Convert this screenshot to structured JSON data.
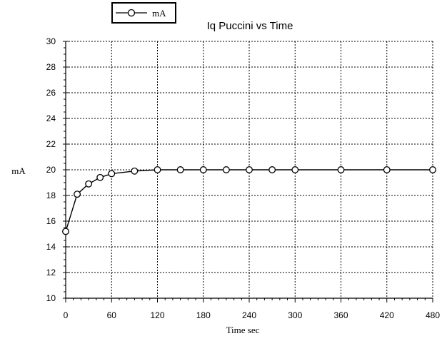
{
  "chart_data": {
    "type": "line",
    "title": "Iq  Puccini  vs  Time",
    "xlabel": "Time  sec",
    "ylabel": "mA",
    "xlim": [
      0,
      480
    ],
    "ylim": [
      10,
      30
    ],
    "x_ticks": [
      0,
      60,
      120,
      180,
      240,
      300,
      360,
      420,
      480
    ],
    "y_ticks": [
      10,
      12,
      14,
      16,
      18,
      20,
      22,
      24,
      26,
      28,
      30
    ],
    "grid": true,
    "legend_position": "top-left",
    "series": [
      {
        "name": "mA",
        "marker": "circle",
        "color": "#000000",
        "x": [
          0,
          15,
          30,
          45,
          60,
          90,
          120,
          150,
          180,
          210,
          240,
          270,
          300,
          360,
          420,
          480
        ],
        "y": [
          15.2,
          18.1,
          18.9,
          19.4,
          19.7,
          19.9,
          20.0,
          20.0,
          20.0,
          20.0,
          20.0,
          20.0,
          20.0,
          20.0,
          20.0,
          20.0
        ]
      }
    ]
  }
}
